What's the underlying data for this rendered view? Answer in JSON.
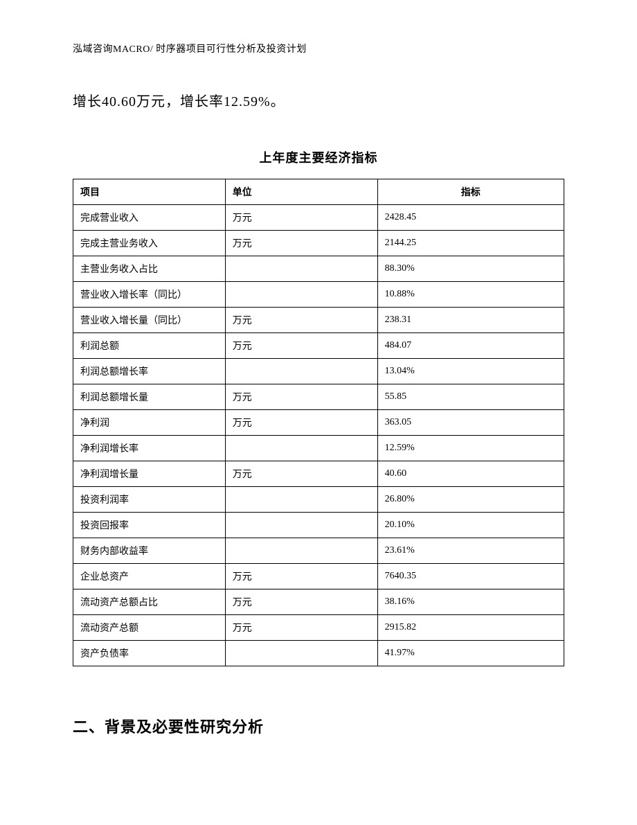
{
  "header": "泓域咨询MACRO/ 时序器项目可行性分析及投资计划",
  "intro_text": "增长40.60万元，增长率12.59%。",
  "table": {
    "title": "上年度主要经济指标",
    "columns": [
      "项目",
      "单位",
      "指标"
    ],
    "rows": [
      {
        "item": "完成营业收入",
        "unit": "万元",
        "value": "2428.45"
      },
      {
        "item": "完成主营业务收入",
        "unit": "万元",
        "value": "2144.25"
      },
      {
        "item": "主营业务收入占比",
        "unit": "",
        "value": "88.30%"
      },
      {
        "item": "营业收入增长率（同比）",
        "unit": "",
        "value": "10.88%"
      },
      {
        "item": "营业收入增长量（同比）",
        "unit": "万元",
        "value": "238.31"
      },
      {
        "item": "利润总额",
        "unit": "万元",
        "value": "484.07"
      },
      {
        "item": "利润总额增长率",
        "unit": "",
        "value": "13.04%"
      },
      {
        "item": "利润总额增长量",
        "unit": "万元",
        "value": "55.85"
      },
      {
        "item": "净利润",
        "unit": "万元",
        "value": "363.05"
      },
      {
        "item": "净利润增长率",
        "unit": "",
        "value": "12.59%"
      },
      {
        "item": "净利润增长量",
        "unit": "万元",
        "value": "40.60"
      },
      {
        "item": "投资利润率",
        "unit": "",
        "value": "26.80%"
      },
      {
        "item": "投资回报率",
        "unit": "",
        "value": "20.10%"
      },
      {
        "item": "财务内部收益率",
        "unit": "",
        "value": "23.61%"
      },
      {
        "item": "企业总资产",
        "unit": "万元",
        "value": "7640.35"
      },
      {
        "item": "流动资产总额占比",
        "unit": "万元",
        "value": "38.16%"
      },
      {
        "item": "流动资产总额",
        "unit": "万元",
        "value": "2915.82"
      },
      {
        "item": "资产负债率",
        "unit": "",
        "value": "41.97%"
      }
    ]
  },
  "section_heading": "二、背景及必要性研究分析"
}
